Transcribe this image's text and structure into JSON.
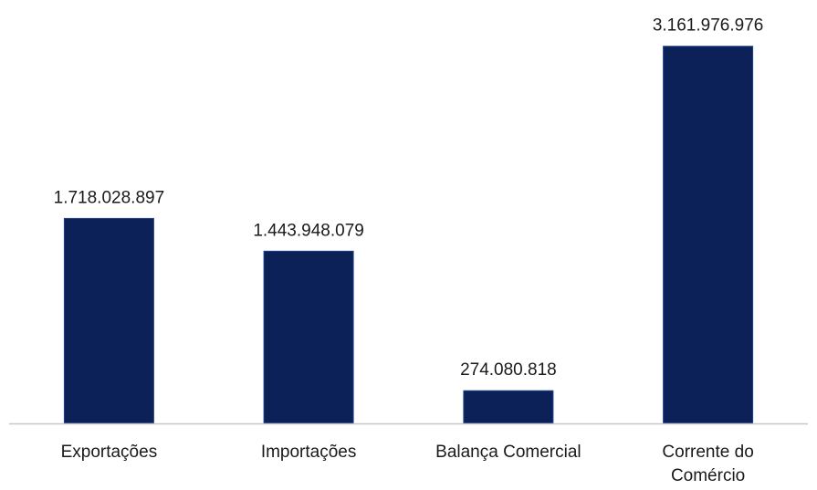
{
  "chart_data": {
    "type": "bar",
    "categories": [
      "Exportações",
      "Importações",
      "Balança Comercial",
      "Corrente do Comércio"
    ],
    "category_lines": [
      [
        "Exportações"
      ],
      [
        "Importações"
      ],
      [
        "Balança Comercial"
      ],
      [
        "Corrente do",
        "Comércio"
      ]
    ],
    "values": [
      1718028897,
      1443948079,
      274080818,
      3161976976
    ],
    "value_labels": [
      "1.718.028.897",
      "1.443.948.079",
      "274.080.818",
      "3.161.976.976"
    ],
    "title": "",
    "xlabel": "",
    "ylabel": "",
    "ylim": [
      0,
      3550000000
    ],
    "grid": false,
    "legend": "none",
    "colors": {
      "bar": "#0b2157",
      "bar_edge": "#1e3f8a",
      "axis": "#c8c8c8"
    }
  }
}
